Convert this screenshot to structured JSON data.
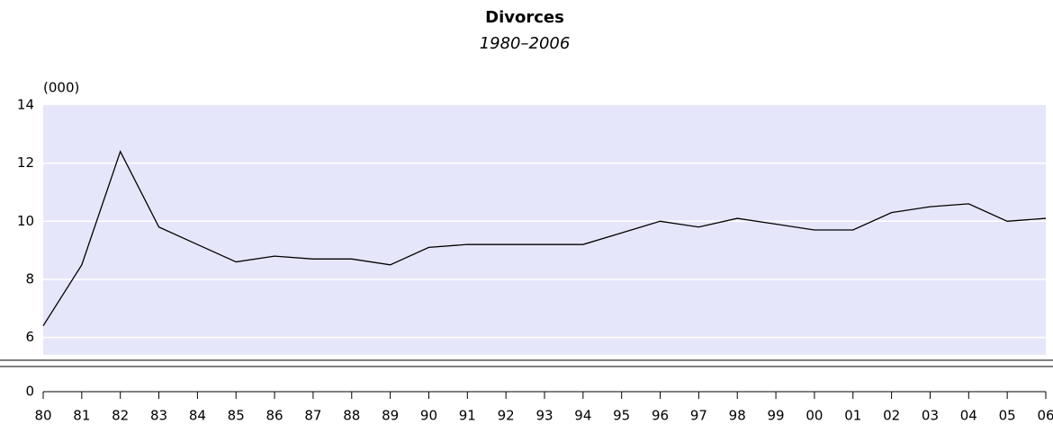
{
  "chart_data": {
    "type": "line",
    "title": "Divorces",
    "subtitle": "1980–2006",
    "y_label": "(000)",
    "categories": [
      "80",
      "81",
      "82",
      "83",
      "84",
      "85",
      "86",
      "87",
      "88",
      "89",
      "90",
      "91",
      "92",
      "93",
      "94",
      "95",
      "96",
      "97",
      "98",
      "99",
      "00",
      "01",
      "02",
      "03",
      "04",
      "05",
      "06"
    ],
    "series": [
      {
        "name": "Divorces",
        "color": "#000000",
        "values": [
          6.4,
          8.5,
          12.4,
          9.8,
          9.2,
          8.6,
          8.8,
          8.7,
          8.7,
          8.5,
          9.1,
          9.2,
          9.2,
          9.2,
          9.2,
          9.6,
          10.0,
          9.8,
          10.1,
          9.9,
          9.7,
          9.7,
          10.3,
          10.5,
          10.6,
          10.0,
          10.1
        ]
      }
    ],
    "ylim": [
      0,
      14
    ],
    "axis_break": [
      0,
      5.4
    ],
    "yticks": [
      0,
      6,
      8,
      10,
      12,
      14
    ],
    "grid": true,
    "plot_background": "#e6e6fa"
  }
}
